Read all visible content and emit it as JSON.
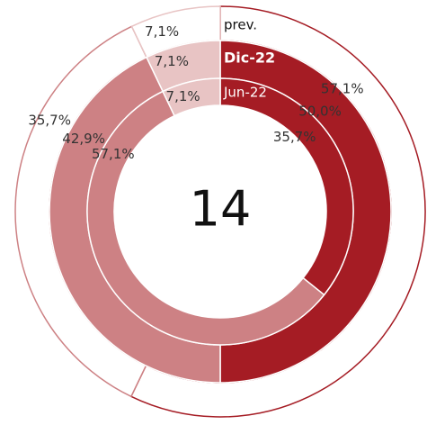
{
  "chart_data": {
    "type": "donut",
    "center_label": "14",
    "colors": [
      "#a51c24",
      "#cd8184",
      "#e8c4c4"
    ],
    "series": [
      {
        "name": "prev.",
        "outline": true,
        "values": [
          57.1,
          35.7,
          7.1
        ],
        "value_labels": [
          "57,1%",
          "35,7%",
          "7,1%"
        ]
      },
      {
        "name": "Dic-22",
        "values": [
          50.0,
          42.9,
          7.1
        ],
        "value_labels": [
          "50,0%",
          "42,9%",
          "7,1%"
        ]
      },
      {
        "name": "Jun-22",
        "values": [
          35.7,
          57.1,
          7.1
        ],
        "value_labels": [
          "35,7%",
          "57,1%",
          "7,1%"
        ]
      }
    ]
  }
}
